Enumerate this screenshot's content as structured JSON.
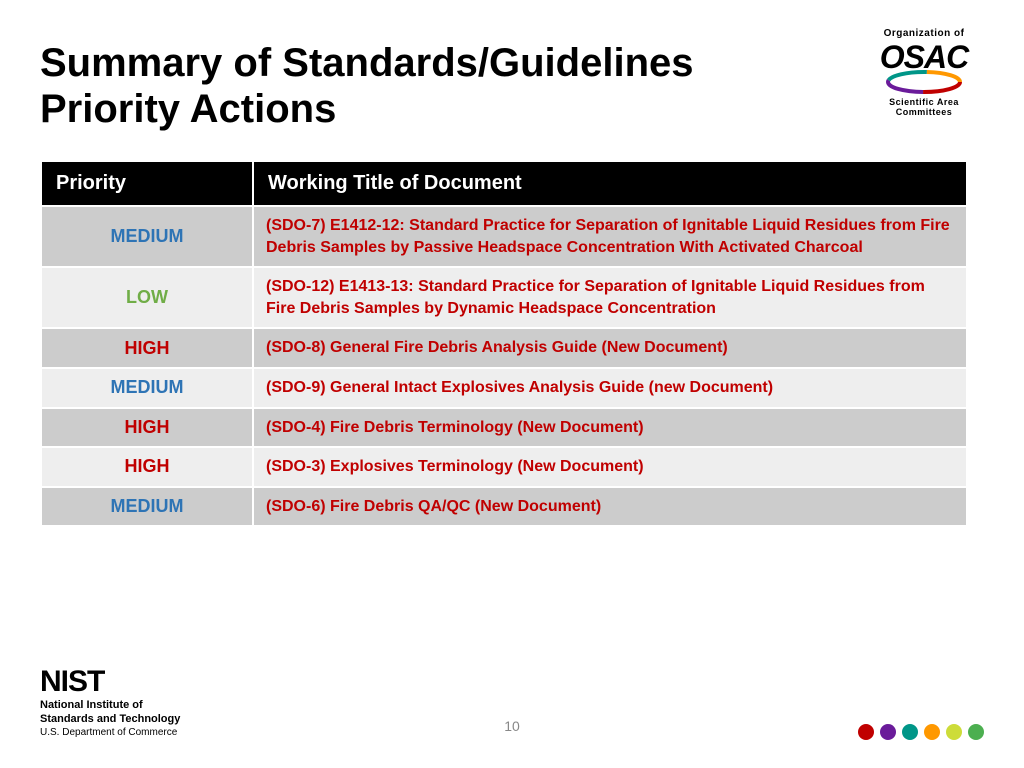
{
  "title": "Summary of Standards/Guidelines Priority Actions",
  "page_number": "10",
  "osac": {
    "top": "Organization of",
    "mid": "OSAC",
    "bottom": "Scientific Area Committees",
    "ring_colors": [
      "#c00000",
      "#6a1b9a",
      "#009688",
      "#ff9800",
      "#8bc34a"
    ]
  },
  "nist": {
    "word": "NIST",
    "line2a": "National Institute of",
    "line2b": "Standards and Technology",
    "line3": "U.S. Department of Commerce"
  },
  "table": {
    "columns": [
      "Priority",
      "Working Title of Document"
    ],
    "header_bg": "#000000",
    "header_fg": "#ffffff",
    "row_bg_dark": "#cccccc",
    "row_bg_light": "#eeeeee",
    "title_color": "#c00000",
    "priority_colors": {
      "HIGH": "#c00000",
      "MEDIUM": "#2e74b5",
      "LOW": "#70ad47"
    },
    "rows": [
      {
        "priority": "MEDIUM",
        "bg": "dark",
        "title": "(SDO-7) E1412-12: Standard Practice for Separation of Ignitable Liquid Residues from Fire Debris Samples by Passive Headspace Concentration With Activated Charcoal"
      },
      {
        "priority": "LOW",
        "bg": "light",
        "title": "(SDO-12) E1413-13: Standard Practice for Separation of Ignitable Liquid Residues from Fire Debris Samples by Dynamic Headspace Concentration"
      },
      {
        "priority": "HIGH",
        "bg": "dark",
        "title": "(SDO-8) General Fire Debris Analysis Guide (New Document)"
      },
      {
        "priority": "MEDIUM",
        "bg": "light",
        "title": "(SDO-9) General Intact Explosives Analysis Guide (new Document)"
      },
      {
        "priority": "HIGH",
        "bg": "dark",
        "title": "(SDO-4) Fire Debris Terminology (New Document)"
      },
      {
        "priority": "HIGH",
        "bg": "light",
        "title": "(SDO-3) Explosives Terminology (New Document)"
      },
      {
        "priority": "MEDIUM",
        "bg": "dark",
        "title": "(SDO-6) Fire Debris QA/QC (New Document)"
      }
    ]
  },
  "dots": [
    "#c00000",
    "#6a1b9a",
    "#009688",
    "#ff9800",
    "#cddc39",
    "#4caf50"
  ]
}
